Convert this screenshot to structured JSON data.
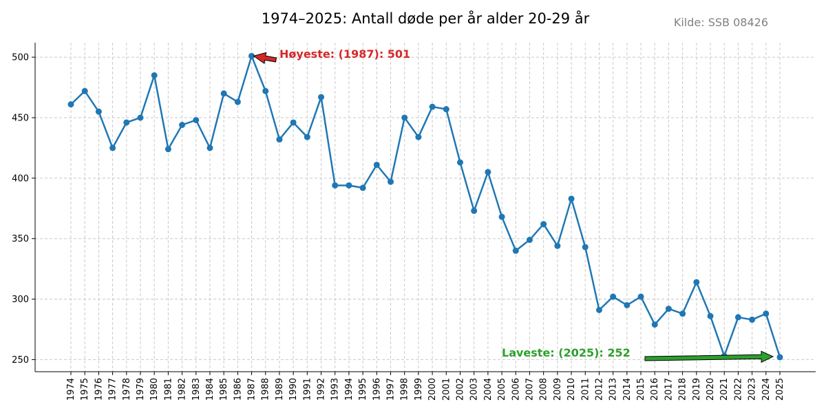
{
  "chart_data": {
    "type": "line",
    "title": "1974–2025: Antall døde per år alder 20-29 år",
    "source_note": "Kilde: SSB 08426",
    "xlabel": "",
    "ylabel": "",
    "x": [
      1974,
      1975,
      1976,
      1977,
      1978,
      1979,
      1980,
      1981,
      1982,
      1983,
      1984,
      1985,
      1986,
      1987,
      1988,
      1989,
      1990,
      1991,
      1992,
      1993,
      1994,
      1995,
      1996,
      1997,
      1998,
      1999,
      2000,
      2001,
      2002,
      2003,
      2004,
      2005,
      2006,
      2007,
      2008,
      2009,
      2010,
      2011,
      2012,
      2013,
      2014,
      2015,
      2016,
      2017,
      2018,
      2019,
      2020,
      2021,
      2022,
      2023,
      2024,
      2025
    ],
    "series": [
      {
        "values": [
          461,
          472,
          455,
          425,
          446,
          450,
          485,
          424,
          444,
          448,
          425,
          470,
          463,
          501,
          472,
          432,
          446,
          434,
          467,
          394,
          394,
          392,
          411,
          397,
          450,
          434,
          459,
          457,
          413,
          373,
          405,
          368,
          340,
          349,
          362,
          344,
          383,
          343,
          291,
          302,
          295,
          302,
          279,
          292,
          288,
          314,
          286,
          253,
          285,
          283,
          288,
          252
        ],
        "color": "#1f77b4"
      }
    ],
    "ylim": [
      240,
      512
    ],
    "yticks": [
      250,
      300,
      350,
      400,
      450,
      500
    ],
    "grid": true,
    "legend": "none",
    "annotations": [
      {
        "text": "Høyeste: (1987): 501",
        "x": 1987,
        "y": 501,
        "color": "#d62728"
      },
      {
        "text": "Laveste: (2025): 252",
        "x": 2025,
        "y": 252,
        "color": "#2ca02c"
      }
    ]
  }
}
